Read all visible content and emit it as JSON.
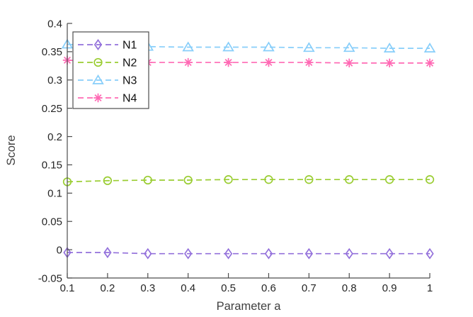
{
  "figure": {
    "background": "#ffffff"
  },
  "chart_data": {
    "type": "line",
    "title": "",
    "xlabel": "Parameter a",
    "ylabel": "Score",
    "xlim": [
      0.1,
      1
    ],
    "ylim": [
      -0.05,
      0.4
    ],
    "grid": false,
    "line_style": "dashed",
    "legend_position": "top-left",
    "axis_color": "#4d4d4d",
    "tick_label_color": "#262626",
    "legend_border_color": "#4d4d4d",
    "legend_text_color": "#111111",
    "x": [
      0.1,
      0.2,
      0.3,
      0.4,
      0.5,
      0.6,
      0.7,
      0.8,
      0.9,
      1.0
    ],
    "xtick_labels": [
      "0.1",
      "0.2",
      "0.3",
      "0.4",
      "0.5",
      "0.6",
      "0.7",
      "0.8",
      "0.9",
      "1"
    ],
    "yticks": [
      -0.05,
      0,
      0.05,
      0.1,
      0.15,
      0.2,
      0.25,
      0.3,
      0.35,
      0.4
    ],
    "ytick_labels": [
      "-0.05",
      "0",
      "0.05",
      "0.1",
      "0.15",
      "0.2",
      "0.25",
      "0.3",
      "0.35",
      "0.4"
    ],
    "series": [
      {
        "name": "N1",
        "marker": "diamond",
        "color": "#9370DB",
        "values": [
          -0.005,
          -0.005,
          -0.007,
          -0.007,
          -0.007,
          -0.007,
          -0.007,
          -0.007,
          -0.007,
          -0.007
        ]
      },
      {
        "name": "N2",
        "marker": "circle",
        "color": "#9ACD32",
        "values": [
          0.12,
          0.122,
          0.123,
          0.123,
          0.124,
          0.124,
          0.124,
          0.124,
          0.124,
          0.124
        ]
      },
      {
        "name": "N3",
        "marker": "triangle",
        "color": "#87CEFA",
        "values": [
          0.363,
          0.36,
          0.359,
          0.358,
          0.358,
          0.358,
          0.357,
          0.357,
          0.356,
          0.356
        ]
      },
      {
        "name": "N4",
        "marker": "asterisk",
        "color": "#FF69B4",
        "values": [
          0.335,
          0.332,
          0.331,
          0.331,
          0.331,
          0.331,
          0.331,
          0.33,
          0.33,
          0.33
        ]
      }
    ]
  }
}
